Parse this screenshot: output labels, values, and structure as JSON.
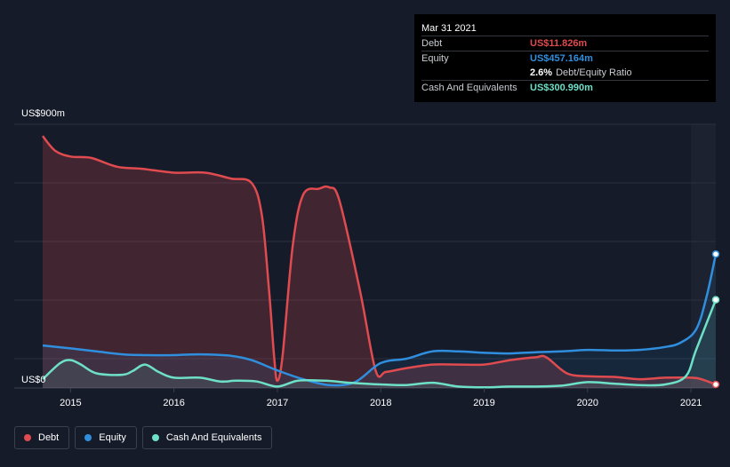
{
  "tooltip": {
    "date": "Mar 31 2021",
    "debt_label": "Debt",
    "debt_value": "US$11.826m",
    "equity_label": "Equity",
    "equity_value": "US$457.164m",
    "ratio_value": "2.6%",
    "ratio_label": "Debt/Equity Ratio",
    "cash_label": "Cash And Equivalents",
    "cash_value": "US$300.990m"
  },
  "legend": {
    "debt": "Debt",
    "equity": "Equity",
    "cash": "Cash And Equivalents"
  },
  "colors": {
    "debt": "#e04b4f",
    "equity": "#2f8fde",
    "cash": "#6ee0c8",
    "background": "#151b29"
  },
  "chart_data": {
    "type": "area",
    "y_top_label": "US$900m",
    "y_bottom_label": "US$0",
    "ylim": [
      0,
      900
    ],
    "xlim": [
      2014.73,
      2021.24
    ],
    "x_ticks": [
      "2015",
      "2016",
      "2017",
      "2018",
      "2019",
      "2020",
      "2021"
    ],
    "x_tick_values": [
      2015,
      2016,
      2017,
      2018,
      2019,
      2020,
      2021
    ],
    "grid": true,
    "legend_position": "bottom-left",
    "series": [
      {
        "name": "Debt",
        "key": "debt",
        "x": [
          2014.73,
          2014.85,
          2015.0,
          2015.2,
          2015.45,
          2015.7,
          2016.0,
          2016.3,
          2016.55,
          2016.75,
          2016.85,
          2016.92,
          2016.97,
          2017.0,
          2017.05,
          2017.15,
          2017.25,
          2017.4,
          2017.5,
          2017.6,
          2017.8,
          2017.95,
          2018.05,
          2018.25,
          2018.5,
          2018.75,
          2019.0,
          2019.25,
          2019.5,
          2019.6,
          2019.8,
          2020.0,
          2020.25,
          2020.5,
          2020.75,
          2021.0,
          2021.1,
          2021.24
        ],
        "values": [
          860,
          810,
          790,
          785,
          755,
          748,
          735,
          735,
          715,
          700,
          590,
          330,
          100,
          25,
          110,
          490,
          660,
          680,
          685,
          640,
          330,
          60,
          55,
          68,
          80,
          80,
          80,
          95,
          105,
          105,
          50,
          40,
          38,
          30,
          35,
          35,
          30,
          12
        ]
      },
      {
        "name": "Equity",
        "key": "equity",
        "x": [
          2014.73,
          2015.0,
          2015.25,
          2015.5,
          2015.75,
          2016.0,
          2016.25,
          2016.55,
          2016.75,
          2017.0,
          2017.25,
          2017.5,
          2017.75,
          2018.0,
          2018.25,
          2018.5,
          2018.75,
          2019.0,
          2019.25,
          2019.5,
          2019.75,
          2020.0,
          2020.25,
          2020.5,
          2020.75,
          2020.9,
          2021.05,
          2021.15,
          2021.24
        ],
        "values": [
          145,
          135,
          125,
          115,
          112,
          112,
          115,
          110,
          95,
          60,
          30,
          10,
          20,
          85,
          100,
          125,
          125,
          120,
          118,
          122,
          125,
          130,
          128,
          130,
          140,
          155,
          200,
          310,
          457
        ]
      },
      {
        "name": "Cash And Equivalents",
        "key": "cash",
        "x": [
          2014.73,
          2014.9,
          2015.0,
          2015.1,
          2015.25,
          2015.5,
          2015.6,
          2015.72,
          2015.85,
          2016.0,
          2016.25,
          2016.45,
          2016.6,
          2016.8,
          2017.0,
          2017.2,
          2017.45,
          2017.7,
          2018.0,
          2018.25,
          2018.5,
          2018.75,
          2019.0,
          2019.25,
          2019.5,
          2019.75,
          2020.0,
          2020.25,
          2020.5,
          2020.75,
          2020.95,
          2021.05,
          2021.24
        ],
        "values": [
          30,
          85,
          95,
          80,
          50,
          45,
          58,
          80,
          55,
          35,
          35,
          22,
          25,
          22,
          5,
          25,
          25,
          18,
          12,
          10,
          18,
          5,
          2,
          5,
          5,
          8,
          20,
          15,
          10,
          12,
          40,
          130,
          301
        ]
      }
    ]
  }
}
